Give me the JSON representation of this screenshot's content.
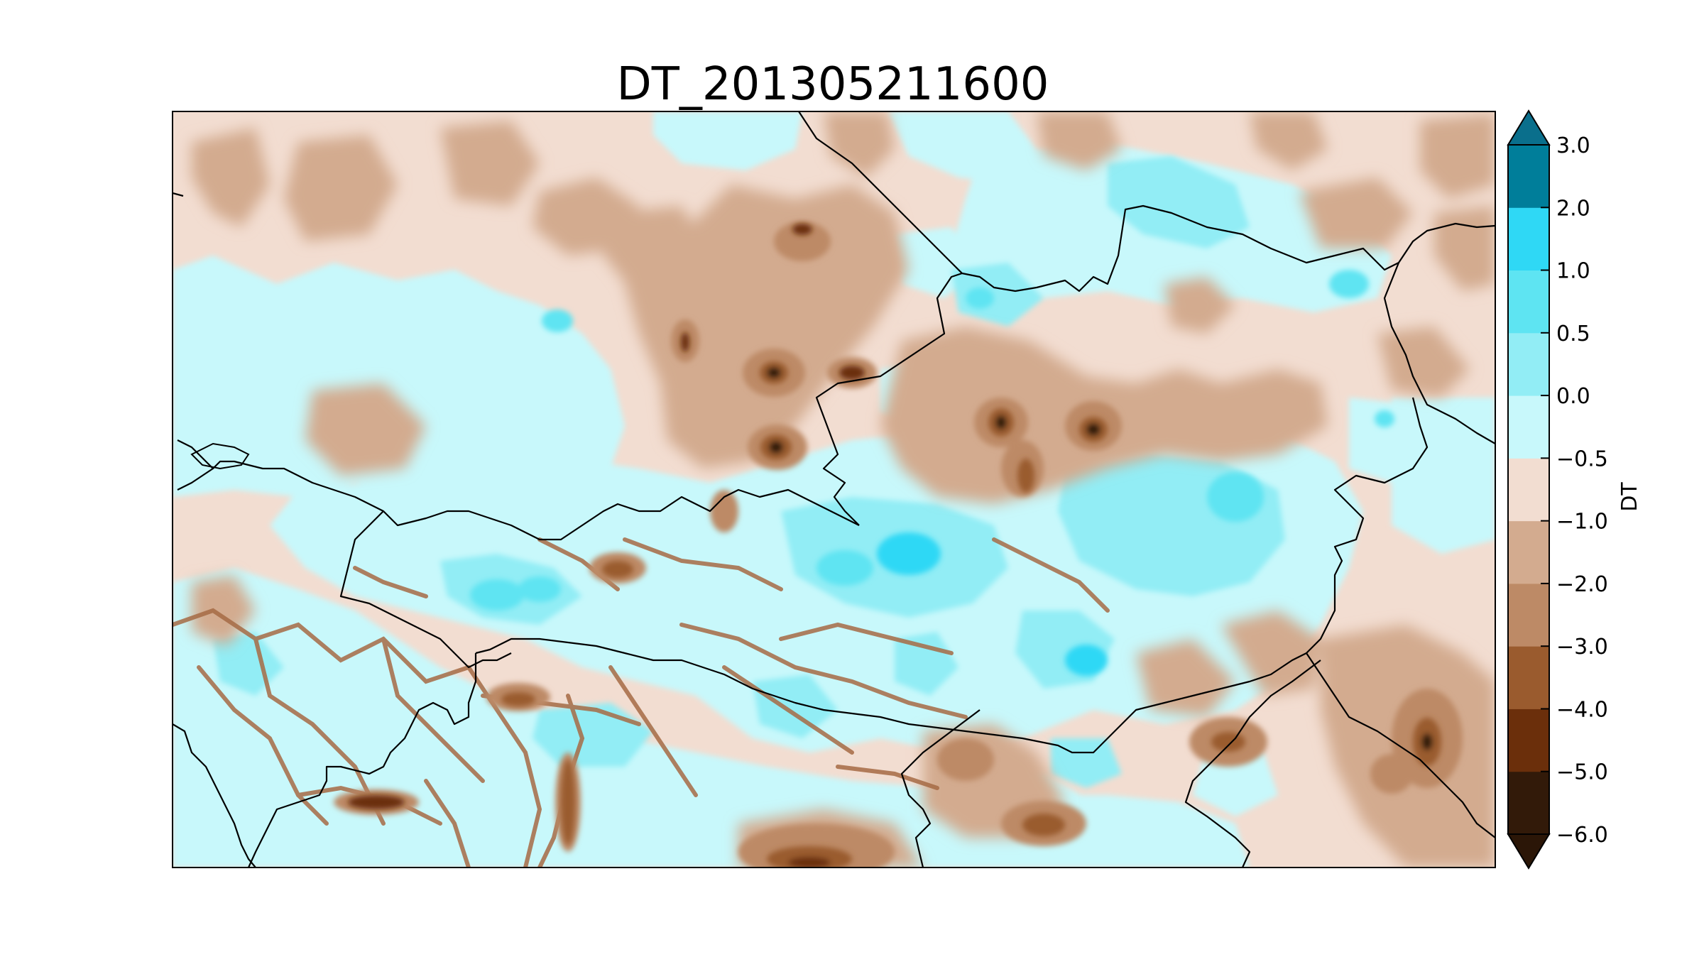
{
  "title": "DT_201305211600",
  "colorbar": {
    "label": "DT",
    "levels": [
      -6.0,
      -5.0,
      -4.0,
      -3.0,
      -2.0,
      -1.0,
      -0.5,
      0.0,
      0.5,
      1.0,
      2.0,
      3.0
    ],
    "tick_labels": [
      "−6.0",
      "−5.0",
      "−4.0",
      "−3.0",
      "−2.0",
      "−1.0",
      "−0.5",
      "0.0",
      "0.5",
      "1.0",
      "2.0",
      "3.0"
    ],
    "colors": [
      "#321a09",
      "#6b2f0b",
      "#9a5b2e",
      "#bd8a66",
      "#d3ab8f",
      "#f2ddd1",
      "#c8f8fb",
      "#92edf5",
      "#5ee4f2",
      "#2fd8f5",
      "#007e9a"
    ],
    "under_color": "#2b1607",
    "over_color": "#0a6f8c",
    "extend": "both"
  },
  "map": {
    "background_color": "#f2ddd1",
    "border_color": "#000000"
  }
}
